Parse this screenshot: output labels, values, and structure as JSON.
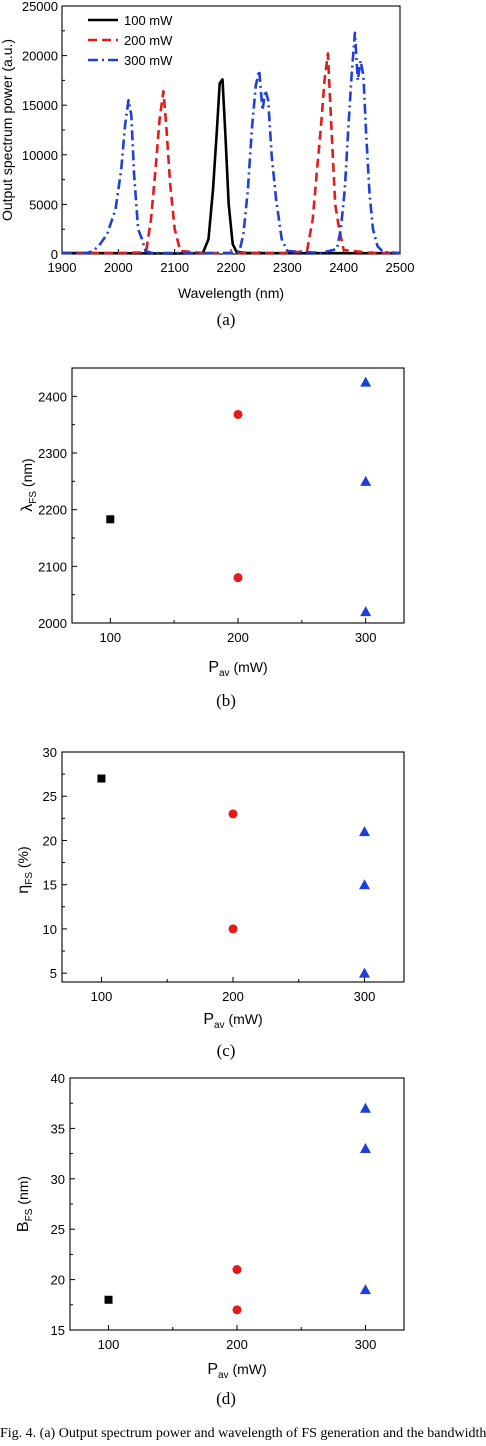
{
  "chart_data": [
    {
      "id": "a",
      "type": "line",
      "panel_label": "(a)",
      "xlabel": "Wavelength (nm)",
      "ylabel": "Output spectrum power (a.u.)",
      "xlim": [
        1900,
        2500
      ],
      "ylim": [
        0,
        25000
      ],
      "xticks": [
        1900,
        2000,
        2100,
        2200,
        2300,
        2400,
        2500
      ],
      "yticks": [
        0,
        5000,
        10000,
        15000,
        20000,
        25000
      ],
      "legend": "top-left",
      "series": [
        {
          "name": "100 mW",
          "color": "#000000",
          "style": "solid",
          "x": [
            1900,
            1940,
            2000,
            2100,
            2150,
            2160,
            2168,
            2175,
            2180,
            2185,
            2190,
            2196,
            2203,
            2210,
            2230,
            2300,
            2400,
            2500
          ],
          "y": [
            100,
            100,
            80,
            50,
            80,
            1500,
            6500,
            12500,
            17200,
            17600,
            12000,
            5000,
            1000,
            200,
            100,
            80,
            80,
            80
          ]
        },
        {
          "name": "200 mW",
          "color": "#e41a1c",
          "style": "dash",
          "x": [
            1900,
            1940,
            2000,
            2040,
            2050,
            2058,
            2066,
            2073,
            2080,
            2085,
            2092,
            2100,
            2110,
            2150,
            2300,
            2335,
            2345,
            2352,
            2360,
            2366,
            2372,
            2378,
            2385,
            2392,
            2400,
            2450,
            2500
          ],
          "y": [
            100,
            100,
            100,
            150,
            500,
            3500,
            8500,
            13500,
            16400,
            13000,
            7000,
            2500,
            300,
            100,
            100,
            300,
            3500,
            8000,
            13000,
            17500,
            20200,
            13000,
            5000,
            2500,
            400,
            100,
            100
          ],
          "x2": [],
          "y2": []
        },
        {
          "name": "300 mW",
          "color": "#1f3fd6",
          "style": "dashdot",
          "x": [
            1900,
            1945,
            1955,
            1965,
            1980,
            1995,
            2005,
            2012,
            2018,
            2023,
            2028,
            2035,
            2042,
            2048,
            2060,
            2200,
            2215,
            2222,
            2230,
            2237,
            2244,
            2250,
            2256,
            2261,
            2266,
            2272,
            2280,
            2290,
            2300,
            2360,
            2388,
            2395,
            2402,
            2408,
            2414,
            2420,
            2425,
            2430,
            2435,
            2440,
            2446,
            2452,
            2460,
            2470,
            2500
          ],
          "y": [
            100,
            100,
            300,
            800,
            2000,
            4500,
            8500,
            13000,
            15500,
            14000,
            8000,
            2500,
            1500,
            300,
            100,
            100,
            300,
            2000,
            6500,
            12500,
            17000,
            18500,
            14500,
            16500,
            15500,
            10000,
            5500,
            1500,
            300,
            100,
            500,
            2500,
            6500,
            12500,
            18000,
            22300,
            17500,
            19500,
            18000,
            12000,
            6000,
            2500,
            800,
            200,
            100
          ]
        }
      ]
    },
    {
      "id": "b",
      "type": "scatter",
      "panel_label": "(b)",
      "ylabel_main": "λ",
      "ylabel_sub": "FS",
      "ylabel_unit": " (nm)",
      "xlabel_main": "P",
      "xlabel_sub": "av",
      "xlabel_unit": " (mW)",
      "xlim": [
        70,
        330
      ],
      "ylim": [
        2000,
        2450
      ],
      "xticks": [
        100,
        200,
        300
      ],
      "yticks": [
        2000,
        2100,
        2200,
        2300,
        2400
      ],
      "points": [
        {
          "x": 100,
          "y": 2183,
          "marker": "square",
          "color": "#000000"
        },
        {
          "x": 200,
          "y": 2368,
          "marker": "circle",
          "color": "#e41a1c"
        },
        {
          "x": 200,
          "y": 2080,
          "marker": "circle",
          "color": "#e41a1c"
        },
        {
          "x": 300,
          "y": 2425,
          "marker": "triangle",
          "color": "#1f3fd6"
        },
        {
          "x": 300,
          "y": 2250,
          "marker": "triangle",
          "color": "#1f3fd6"
        },
        {
          "x": 300,
          "y": 2020,
          "marker": "triangle",
          "color": "#1f3fd6"
        }
      ]
    },
    {
      "id": "c",
      "type": "scatter",
      "panel_label": "(c)",
      "ylabel_main": "η",
      "ylabel_sub": "FS",
      "ylabel_unit": " (%)",
      "xlabel_main": "P",
      "xlabel_sub": "av",
      "xlabel_unit": " (mW)",
      "xlim": [
        70,
        330
      ],
      "ylim": [
        4,
        30
      ],
      "xticks": [
        100,
        200,
        300
      ],
      "yticks": [
        5,
        10,
        15,
        20,
        25,
        30
      ],
      "points": [
        {
          "x": 100,
          "y": 27,
          "marker": "square",
          "color": "#000000"
        },
        {
          "x": 200,
          "y": 23,
          "marker": "circle",
          "color": "#e41a1c"
        },
        {
          "x": 200,
          "y": 10,
          "marker": "circle",
          "color": "#e41a1c"
        },
        {
          "x": 300,
          "y": 21,
          "marker": "triangle",
          "color": "#1f3fd6"
        },
        {
          "x": 300,
          "y": 15,
          "marker": "triangle",
          "color": "#1f3fd6"
        },
        {
          "x": 300,
          "y": 5,
          "marker": "triangle",
          "color": "#1f3fd6"
        }
      ]
    },
    {
      "id": "d",
      "type": "scatter",
      "panel_label": "(d)",
      "ylabel_main": "B",
      "ylabel_sub": "FS",
      "ylabel_unit": " (nm)",
      "xlabel_main": "P",
      "xlabel_sub": "av",
      "xlabel_unit": " (mW)",
      "xlim": [
        70,
        330
      ],
      "ylim": [
        15,
        40
      ],
      "xticks": [
        100,
        200,
        300
      ],
      "yticks": [
        15,
        20,
        25,
        30,
        35,
        40
      ],
      "points": [
        {
          "x": 100,
          "y": 18,
          "marker": "square",
          "color": "#000000"
        },
        {
          "x": 200,
          "y": 21,
          "marker": "circle",
          "color": "#e41a1c"
        },
        {
          "x": 200,
          "y": 17,
          "marker": "circle",
          "color": "#e41a1c"
        },
        {
          "x": 300,
          "y": 37,
          "marker": "triangle",
          "color": "#1f3fd6"
        },
        {
          "x": 300,
          "y": 33,
          "marker": "triangle",
          "color": "#1f3fd6"
        },
        {
          "x": 300,
          "y": 19,
          "marker": "triangle",
          "color": "#1f3fd6"
        }
      ]
    }
  ],
  "caption": "Fig. 4. (a) Output spectrum power and wavelength of FS generation and the bandwidth"
}
